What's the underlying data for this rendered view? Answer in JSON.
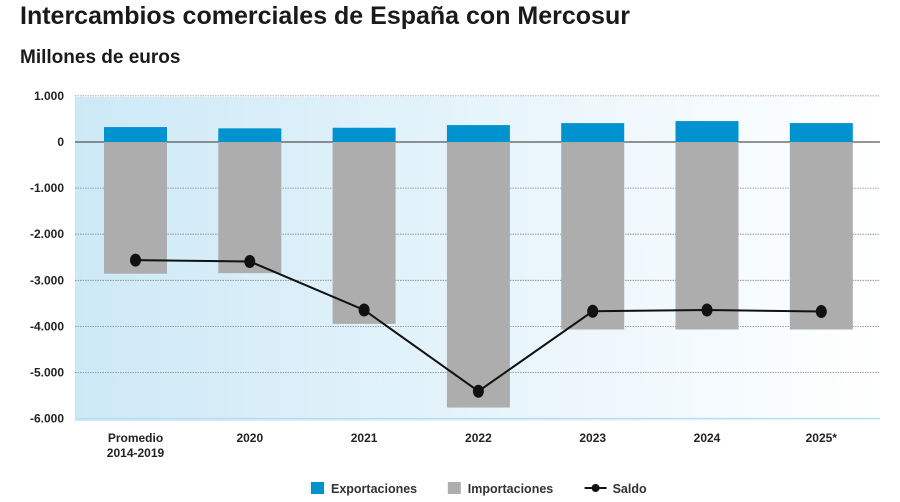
{
  "chart_data": {
    "type": "bar",
    "title": "Intercambios comerciales de España con Mercosur",
    "subtitle": "Millones de euros",
    "categories": [
      [
        "Promedio",
        "2014-2019"
      ],
      [
        "2020"
      ],
      [
        "2021"
      ],
      [
        "2022"
      ],
      [
        "2023"
      ],
      [
        "2024"
      ],
      [
        "2025*"
      ]
    ],
    "ylim": [
      -6000,
      1000
    ],
    "yticks": [
      1000,
      0,
      -1000,
      -2000,
      -3000,
      -4000,
      -5000,
      -6000
    ],
    "ytick_labels": [
      "1.000",
      "0",
      "-1.000",
      "-2.000",
      "-3.000",
      "-4.000",
      "-5.000",
      "-6.000"
    ],
    "grid": true,
    "legend_position": "bottom",
    "series": [
      {
        "name": "Exportaciones",
        "type": "bar",
        "color": "#0093d0",
        "values": [
          324,
          296,
          309,
          367,
          410,
          454,
          410
        ]
      },
      {
        "name": "Importaciones",
        "type": "bar",
        "color": "#adadad",
        "values": [
          -2857,
          -2845,
          -3946,
          -5760,
          -4067,
          -4067,
          -4067
        ]
      },
      {
        "name": "Saldo",
        "type": "line",
        "color": "#111111",
        "values": [
          -2563,
          -2592,
          -3644,
          -5406,
          -3672,
          -3644,
          -3678
        ]
      }
    ]
  }
}
